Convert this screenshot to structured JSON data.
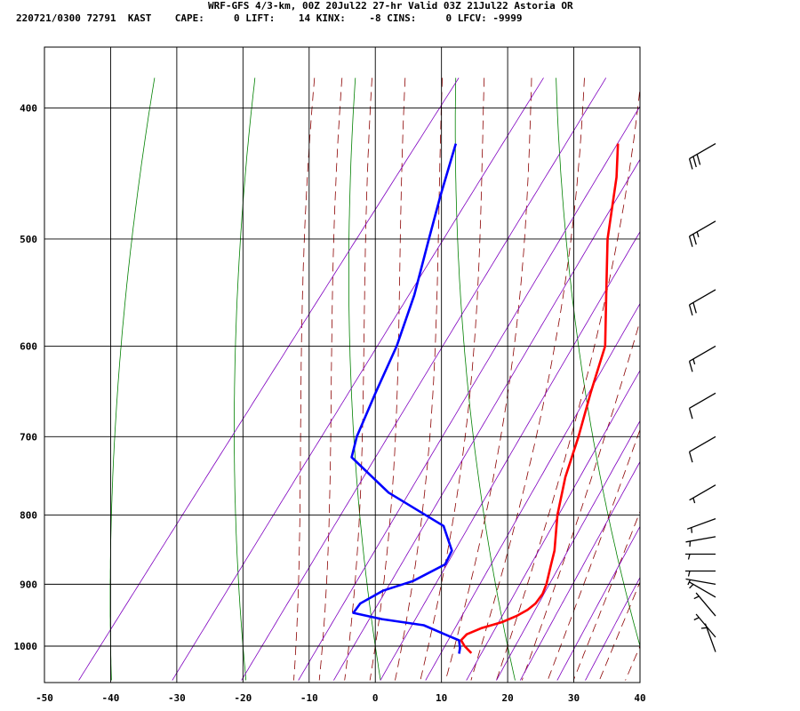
{
  "header": {
    "line1": "WRF-GFS 4/3-km, 00Z 20Jul22 27-hr Valid 03Z 21Jul22 Astoria OR",
    "line2": "220721/0300 72791  KAST    CAPE:     0 LIFT:    14 KINX:    -8 CINS:     0 LFCV: -9999"
  },
  "colors": {
    "temperature": "#ff0000",
    "dewpoint": "#0000ff",
    "isotherm_grid": "#000000",
    "dry_adiabat": "#008000",
    "moist_adiabat": "#8b0000",
    "mixing_ratio": "#7f00bf"
  },
  "chart_data": {
    "type": "line",
    "title": "",
    "xlabel": "",
    "ylabel": "",
    "x_axis": {
      "ticks": [
        -50,
        -40,
        -30,
        -20,
        -10,
        0,
        10,
        20,
        30,
        40
      ],
      "range": [
        -50,
        40
      ]
    },
    "y_axis": {
      "ticks": [
        400,
        500,
        600,
        700,
        800,
        900,
        1000
      ],
      "range": [
        1040,
        400
      ],
      "scale": "log"
    },
    "tick_labels_x": [
      "-50",
      "-40",
      "-30",
      "-20",
      "-10",
      "0",
      "10",
      "20",
      "30",
      "40"
    ],
    "tick_labels_y": [
      "400",
      "500",
      "600",
      "700",
      "800",
      "900",
      "1000"
    ],
    "grid": true,
    "series": [
      {
        "key": "temperature",
        "points": [
          [
            1012,
            15.3
          ],
          [
            1000,
            13.5
          ],
          [
            990,
            12.3
          ],
          [
            980,
            12.5
          ],
          [
            970,
            14.0
          ],
          [
            960,
            16.5
          ],
          [
            950,
            18.0
          ],
          [
            940,
            19.0
          ],
          [
            930,
            19.5
          ],
          [
            915,
            19.5
          ],
          [
            900,
            19.0
          ],
          [
            870,
            17.5
          ],
          [
            850,
            16.5
          ],
          [
            800,
            13.0
          ],
          [
            750,
            10.0
          ],
          [
            700,
            7.5
          ],
          [
            650,
            4.5
          ],
          [
            600,
            1.5
          ],
          [
            550,
            -4.0
          ],
          [
            500,
            -10.0
          ],
          [
            450,
            -15.5
          ],
          [
            425,
            -19.0
          ]
        ]
      },
      {
        "key": "dewpoint",
        "points": [
          [
            1013,
            13.5
          ],
          [
            1003,
            13.0
          ],
          [
            990,
            12.0
          ],
          [
            983,
            10.0
          ],
          [
            965,
            5.0
          ],
          [
            955,
            -2.0
          ],
          [
            945,
            -7.0
          ],
          [
            930,
            -7.0
          ],
          [
            910,
            -5.0
          ],
          [
            895,
            -1.5
          ],
          [
            870,
            1.5
          ],
          [
            850,
            1.0
          ],
          [
            815,
            -3.0
          ],
          [
            770,
            -15.0
          ],
          [
            725,
            -24.5
          ],
          [
            700,
            -26.0
          ],
          [
            650,
            -28.0
          ],
          [
            600,
            -30.0
          ],
          [
            550,
            -33.0
          ],
          [
            500,
            -37.0
          ],
          [
            465,
            -40.0
          ],
          [
            425,
            -43.5
          ]
        ]
      }
    ],
    "wind_barbs": [
      {
        "p": 425,
        "dir": 240,
        "kt": 30
      },
      {
        "p": 485,
        "dir": 240,
        "kt": 25
      },
      {
        "p": 545,
        "dir": 240,
        "kt": 20
      },
      {
        "p": 600,
        "dir": 240,
        "kt": 15
      },
      {
        "p": 650,
        "dir": 240,
        "kt": 10
      },
      {
        "p": 700,
        "dir": 240,
        "kt": 10
      },
      {
        "p": 760,
        "dir": 240,
        "kt": 5
      },
      {
        "p": 805,
        "dir": 250,
        "kt": 5
      },
      {
        "p": 830,
        "dir": 260,
        "kt": 5
      },
      {
        "p": 855,
        "dir": 270,
        "kt": 5
      },
      {
        "p": 880,
        "dir": 270,
        "kt": 5
      },
      {
        "p": 900,
        "dir": 280,
        "kt": 5
      },
      {
        "p": 920,
        "dir": 300,
        "kt": 5
      },
      {
        "p": 950,
        "dir": 320,
        "kt": 5
      },
      {
        "p": 985,
        "dir": 320,
        "kt": 5
      },
      {
        "p": 1010,
        "dir": 340,
        "kt": 5
      }
    ]
  }
}
